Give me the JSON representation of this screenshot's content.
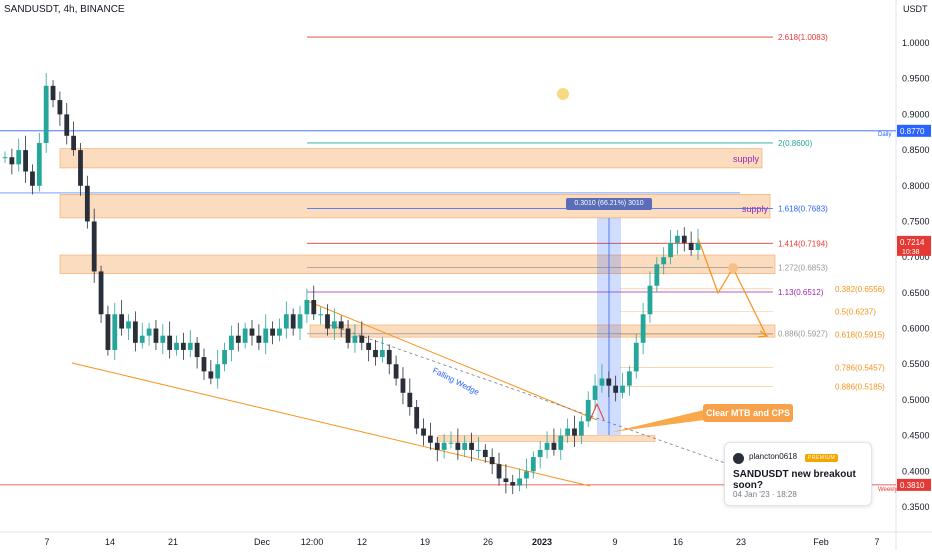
{
  "header": {
    "symbol": "SANDUSDT, 4h, BINANCE",
    "price_axis_title": "USDT"
  },
  "colors": {
    "up": "#26a69a",
    "down": "#2a2e39",
    "zone": "#f7c08a",
    "wedge": "#f7931a",
    "fib_red": "#e53935",
    "fib_teal": "#26a69a",
    "fib_blue": "#2962ff",
    "fib_purple": "#9c27b0",
    "fib_orange": "#f7931a",
    "price_tag": "#e53935",
    "daily_line": "#2962ff",
    "weekly_line": "#e53935"
  },
  "annotations": {
    "supply_1": "supply",
    "supply_2": "supply",
    "falling_wedge": "Falling Wedge",
    "callout": "Clear MTB and CPS",
    "measure": "0.3010 (66.21%) 3010",
    "daily": "Daily",
    "weekly": "Weekly"
  },
  "idea_card": {
    "author": "plancton0618",
    "badge": "PREMIUM",
    "title": "SANDUSDT new breakout soon?",
    "time": "04 Jan '23 · 18:28"
  },
  "price_tags": {
    "daily_value": "0.8770",
    "weekly_value": "0.3810",
    "last_price": "0.7214",
    "countdown": "10:38"
  },
  "chart_data": {
    "type": "candlestick",
    "title": "SANDUSDT, 4h, BINANCE",
    "y_unit": "USDT",
    "ylim": [
      0.335,
      1.06
    ],
    "y_ticks": [
      "1.0000",
      "0.9500",
      "0.9000",
      "0.8500",
      "0.8000",
      "0.7500",
      "0.7000",
      "0.6500",
      "0.6000",
      "0.5500",
      "0.5000",
      "0.4500",
      "0.4000",
      "0.3500"
    ],
    "x_ticks": [
      "7",
      "14",
      "21",
      "Dec",
      "12:00",
      "12",
      "19",
      "26",
      "2023",
      "9",
      "16",
      "23",
      "Feb",
      "7"
    ],
    "fib_levels": [
      {
        "label": "2.618(1.0083)",
        "value": 1.0083,
        "color": "#e53935"
      },
      {
        "label": "2(0.8600)",
        "value": 0.86,
        "color": "#26a69a"
      },
      {
        "label": "1.618(0.7683)",
        "value": 0.7683,
        "color": "#2962ff"
      },
      {
        "label": "1.414(0.7194)",
        "value": 0.7194,
        "color": "#e53935"
      },
      {
        "label": "1.272(0.6853)",
        "value": 0.6853,
        "color": "#999999"
      },
      {
        "label": "1.13(0.6512)",
        "value": 0.6512,
        "color": "#9c27b0"
      },
      {
        "label": "0.886(0.5927)",
        "value": 0.5927,
        "color": "#999999"
      }
    ],
    "retracement_levels": [
      {
        "label": "0.382(0.6556)",
        "value": 0.6556
      },
      {
        "label": "0.5(0.6237)",
        "value": 0.6237
      },
      {
        "label": "0.618(0.5915)",
        "value": 0.5915
      },
      {
        "label": "0.786(0.5457)",
        "value": 0.5457
      },
      {
        "label": "0.886(0.5185)",
        "value": 0.5185
      }
    ],
    "supply_zones": [
      {
        "label": "supply",
        "low": 0.825,
        "high": 0.852
      },
      {
        "label": "supply",
        "low": 0.755,
        "high": 0.788
      },
      {
        "label": "",
        "low": 0.677,
        "high": 0.703
      },
      {
        "label": "",
        "low": 0.588,
        "high": 0.605
      },
      {
        "label": "",
        "low": 0.442,
        "high": 0.45
      }
    ],
    "horizontal_lines": [
      {
        "label": "Daily",
        "value": 0.877
      },
      {
        "label": "Weekly",
        "value": 0.381
      }
    ],
    "close_path": [
      0.84,
      0.83,
      0.85,
      0.82,
      0.8,
      0.86,
      0.94,
      0.92,
      0.9,
      0.87,
      0.85,
      0.8,
      0.75,
      0.68,
      0.62,
      0.57,
      0.62,
      0.6,
      0.61,
      0.58,
      0.59,
      0.6,
      0.58,
      0.59,
      0.57,
      0.58,
      0.57,
      0.58,
      0.56,
      0.54,
      0.53,
      0.55,
      0.57,
      0.59,
      0.58,
      0.6,
      0.59,
      0.58,
      0.6,
      0.59,
      0.6,
      0.62,
      0.6,
      0.62,
      0.64,
      0.62,
      0.62,
      0.6,
      0.61,
      0.6,
      0.58,
      0.59,
      0.58,
      0.57,
      0.56,
      0.57,
      0.55,
      0.53,
      0.51,
      0.49,
      0.46,
      0.45,
      0.44,
      0.43,
      0.44,
      0.44,
      0.43,
      0.44,
      0.43,
      0.43,
      0.42,
      0.41,
      0.39,
      0.385,
      0.38,
      0.39,
      0.4,
      0.42,
      0.43,
      0.44,
      0.43,
      0.45,
      0.46,
      0.45,
      0.47,
      0.5,
      0.52,
      0.53,
      0.52,
      0.51,
      0.52,
      0.54,
      0.58,
      0.62,
      0.66,
      0.69,
      0.7,
      0.72,
      0.73,
      0.72,
      0.71,
      0.72
    ]
  }
}
